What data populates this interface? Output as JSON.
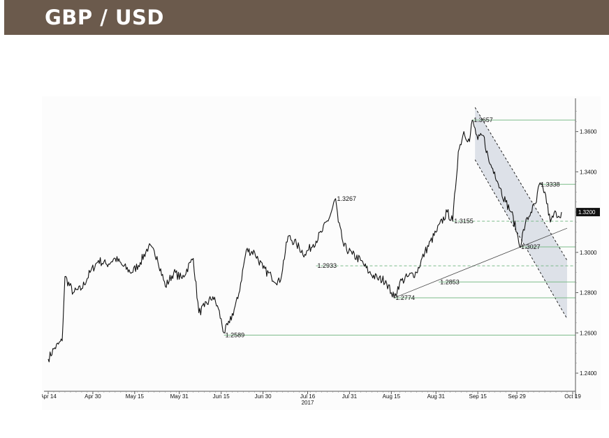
{
  "header": {
    "title": "GBP / USD"
  },
  "colors": {
    "banner": "#6b5a4c",
    "price_line": "#111111",
    "support_line": "#7dbb8a",
    "channel_fill": "#dde1e8",
    "trend_line": "#444444"
  },
  "chart_data": {
    "type": "line",
    "title": "",
    "xlabel": "",
    "ylabel": "",
    "ylim": [
      1.231,
      1.3765
    ],
    "year_label": "2017",
    "x_ticks": [
      {
        "label": "Apr 14",
        "day": 0
      },
      {
        "label": "Apr 30",
        "day": 16
      },
      {
        "label": "May 15",
        "day": 31
      },
      {
        "label": "May 31",
        "day": 47
      },
      {
        "label": "Jun 15",
        "day": 62
      },
      {
        "label": "Jun 30",
        "day": 77
      },
      {
        "label": "Jul 16",
        "day": 93
      },
      {
        "label": "Jul 31",
        "day": 108
      },
      {
        "label": "Aug 15",
        "day": 123
      },
      {
        "label": "Aug 31",
        "day": 139
      },
      {
        "label": "Sep 15",
        "day": 154
      },
      {
        "label": "Sep 29",
        "day": 168
      },
      {
        "label": "Oct 19",
        "day": 188
      }
    ],
    "y_ticks": [
      {
        "value": 1.24,
        "label": "1.2400"
      },
      {
        "value": 1.26,
        "label": "1.2600"
      },
      {
        "value": 1.28,
        "label": "1.2800"
      },
      {
        "value": 1.3,
        "label": "1.3000"
      },
      {
        "value": 1.32,
        "label": "1.3200"
      },
      {
        "value": 1.34,
        "label": "1.3400"
      },
      {
        "value": 1.36,
        "label": "1.3600"
      }
    ],
    "last_price": {
      "value": 1.32,
      "label": "1.3200"
    },
    "series": [
      {
        "points": [
          [
            0,
            1.247
          ],
          [
            2,
            1.252
          ],
          [
            5,
            1.256
          ],
          [
            6,
            1.288
          ],
          [
            9,
            1.28
          ],
          [
            12,
            1.282
          ],
          [
            15,
            1.29
          ],
          [
            18,
            1.296
          ],
          [
            21,
            1.294
          ],
          [
            24,
            1.297
          ],
          [
            27,
            1.293
          ],
          [
            30,
            1.29
          ],
          [
            33,
            1.295
          ],
          [
            36,
            1.303
          ],
          [
            39,
            1.298
          ],
          [
            42,
            1.283
          ],
          [
            45,
            1.29
          ],
          [
            48,
            1.287
          ],
          [
            51,
            1.295
          ],
          [
            52,
            1.297
          ],
          [
            54,
            1.27
          ],
          [
            56,
            1.273
          ],
          [
            59,
            1.278
          ],
          [
            61,
            1.272
          ],
          [
            63,
            1.26
          ],
          [
            65,
            1.265
          ],
          [
            68,
            1.277
          ],
          [
            71,
            1.301
          ],
          [
            74,
            1.3
          ],
          [
            77,
            1.292
          ],
          [
            80,
            1.288
          ],
          [
            83,
            1.285
          ],
          [
            86,
            1.308
          ],
          [
            89,
            1.304
          ],
          [
            92,
            1.299
          ],
          [
            95,
            1.304
          ],
          [
            98,
            1.31
          ],
          [
            101,
            1.318
          ],
          [
            103,
            1.3267
          ],
          [
            104,
            1.315
          ],
          [
            106,
            1.303
          ],
          [
            109,
            1.299
          ],
          [
            112,
            1.296
          ],
          [
            115,
            1.29
          ],
          [
            118,
            1.287
          ],
          [
            121,
            1.286
          ],
          [
            123,
            1.28
          ],
          [
            124,
            1.2774
          ],
          [
            126,
            1.285
          ],
          [
            129,
            1.288
          ],
          [
            132,
            1.29
          ],
          [
            135,
            1.3
          ],
          [
            139,
            1.31
          ],
          [
            143,
            1.32
          ],
          [
            145,
            1.3155
          ],
          [
            147,
            1.35
          ],
          [
            149,
            1.36
          ],
          [
            151,
            1.355
          ],
          [
            152,
            1.3657
          ],
          [
            154,
            1.356
          ],
          [
            156,
            1.358
          ],
          [
            158,
            1.345
          ],
          [
            160,
            1.34
          ],
          [
            162,
            1.332
          ],
          [
            164,
            1.325
          ],
          [
            166,
            1.32
          ],
          [
            168,
            1.31
          ],
          [
            169,
            1.3027
          ],
          [
            171,
            1.314
          ],
          [
            173,
            1.32
          ],
          [
            175,
            1.325
          ],
          [
            176,
            1.3338
          ],
          [
            178,
            1.33
          ],
          [
            180,
            1.315
          ],
          [
            182,
            1.32
          ],
          [
            183,
            1.318
          ],
          [
            184,
            1.32
          ]
        ]
      }
    ],
    "annotations": [
      {
        "label": "1.3657",
        "day": 152,
        "value": 1.3657
      },
      {
        "label": "1.3338",
        "day": 176,
        "value": 1.3338
      },
      {
        "label": "1.3267",
        "day": 103,
        "value": 1.3267
      },
      {
        "label": "1.3155",
        "day": 145,
        "value": 1.3155
      },
      {
        "label": "1.3027",
        "day": 169,
        "value": 1.3027
      },
      {
        "label": "1.2933",
        "day": 96,
        "value": 1.2933
      },
      {
        "label": "1.2853",
        "day": 140,
        "value": 1.2853
      },
      {
        "label": "1.2774",
        "day": 124,
        "value": 1.2774
      },
      {
        "label": "1.2589",
        "day": 63,
        "value": 1.2589
      }
    ],
    "horizontal_lines": [
      {
        "value": 1.3657,
        "from_day": 152,
        "style": "solid"
      },
      {
        "value": 1.3338,
        "from_day": 176,
        "style": "solid"
      },
      {
        "value": 1.3155,
        "from_day": 145,
        "style": "dashed"
      },
      {
        "value": 1.3027,
        "from_day": 169,
        "style": "solid"
      },
      {
        "value": 1.2933,
        "from_day": 96,
        "style": "dashed"
      },
      {
        "value": 1.2853,
        "from_day": 140,
        "style": "solid"
      },
      {
        "value": 1.2774,
        "from_day": 124,
        "style": "solid"
      },
      {
        "value": 1.2589,
        "from_day": 63,
        "style": "solid"
      }
    ],
    "channel": {
      "upper": [
        [
          153,
          1.372
        ],
        [
          186,
          1.296
        ]
      ],
      "lower": [
        [
          153,
          1.346
        ],
        [
          186,
          1.267
        ]
      ]
    },
    "trendline": [
      [
        124,
        1.2774
      ],
      [
        186,
        1.312
      ]
    ]
  }
}
